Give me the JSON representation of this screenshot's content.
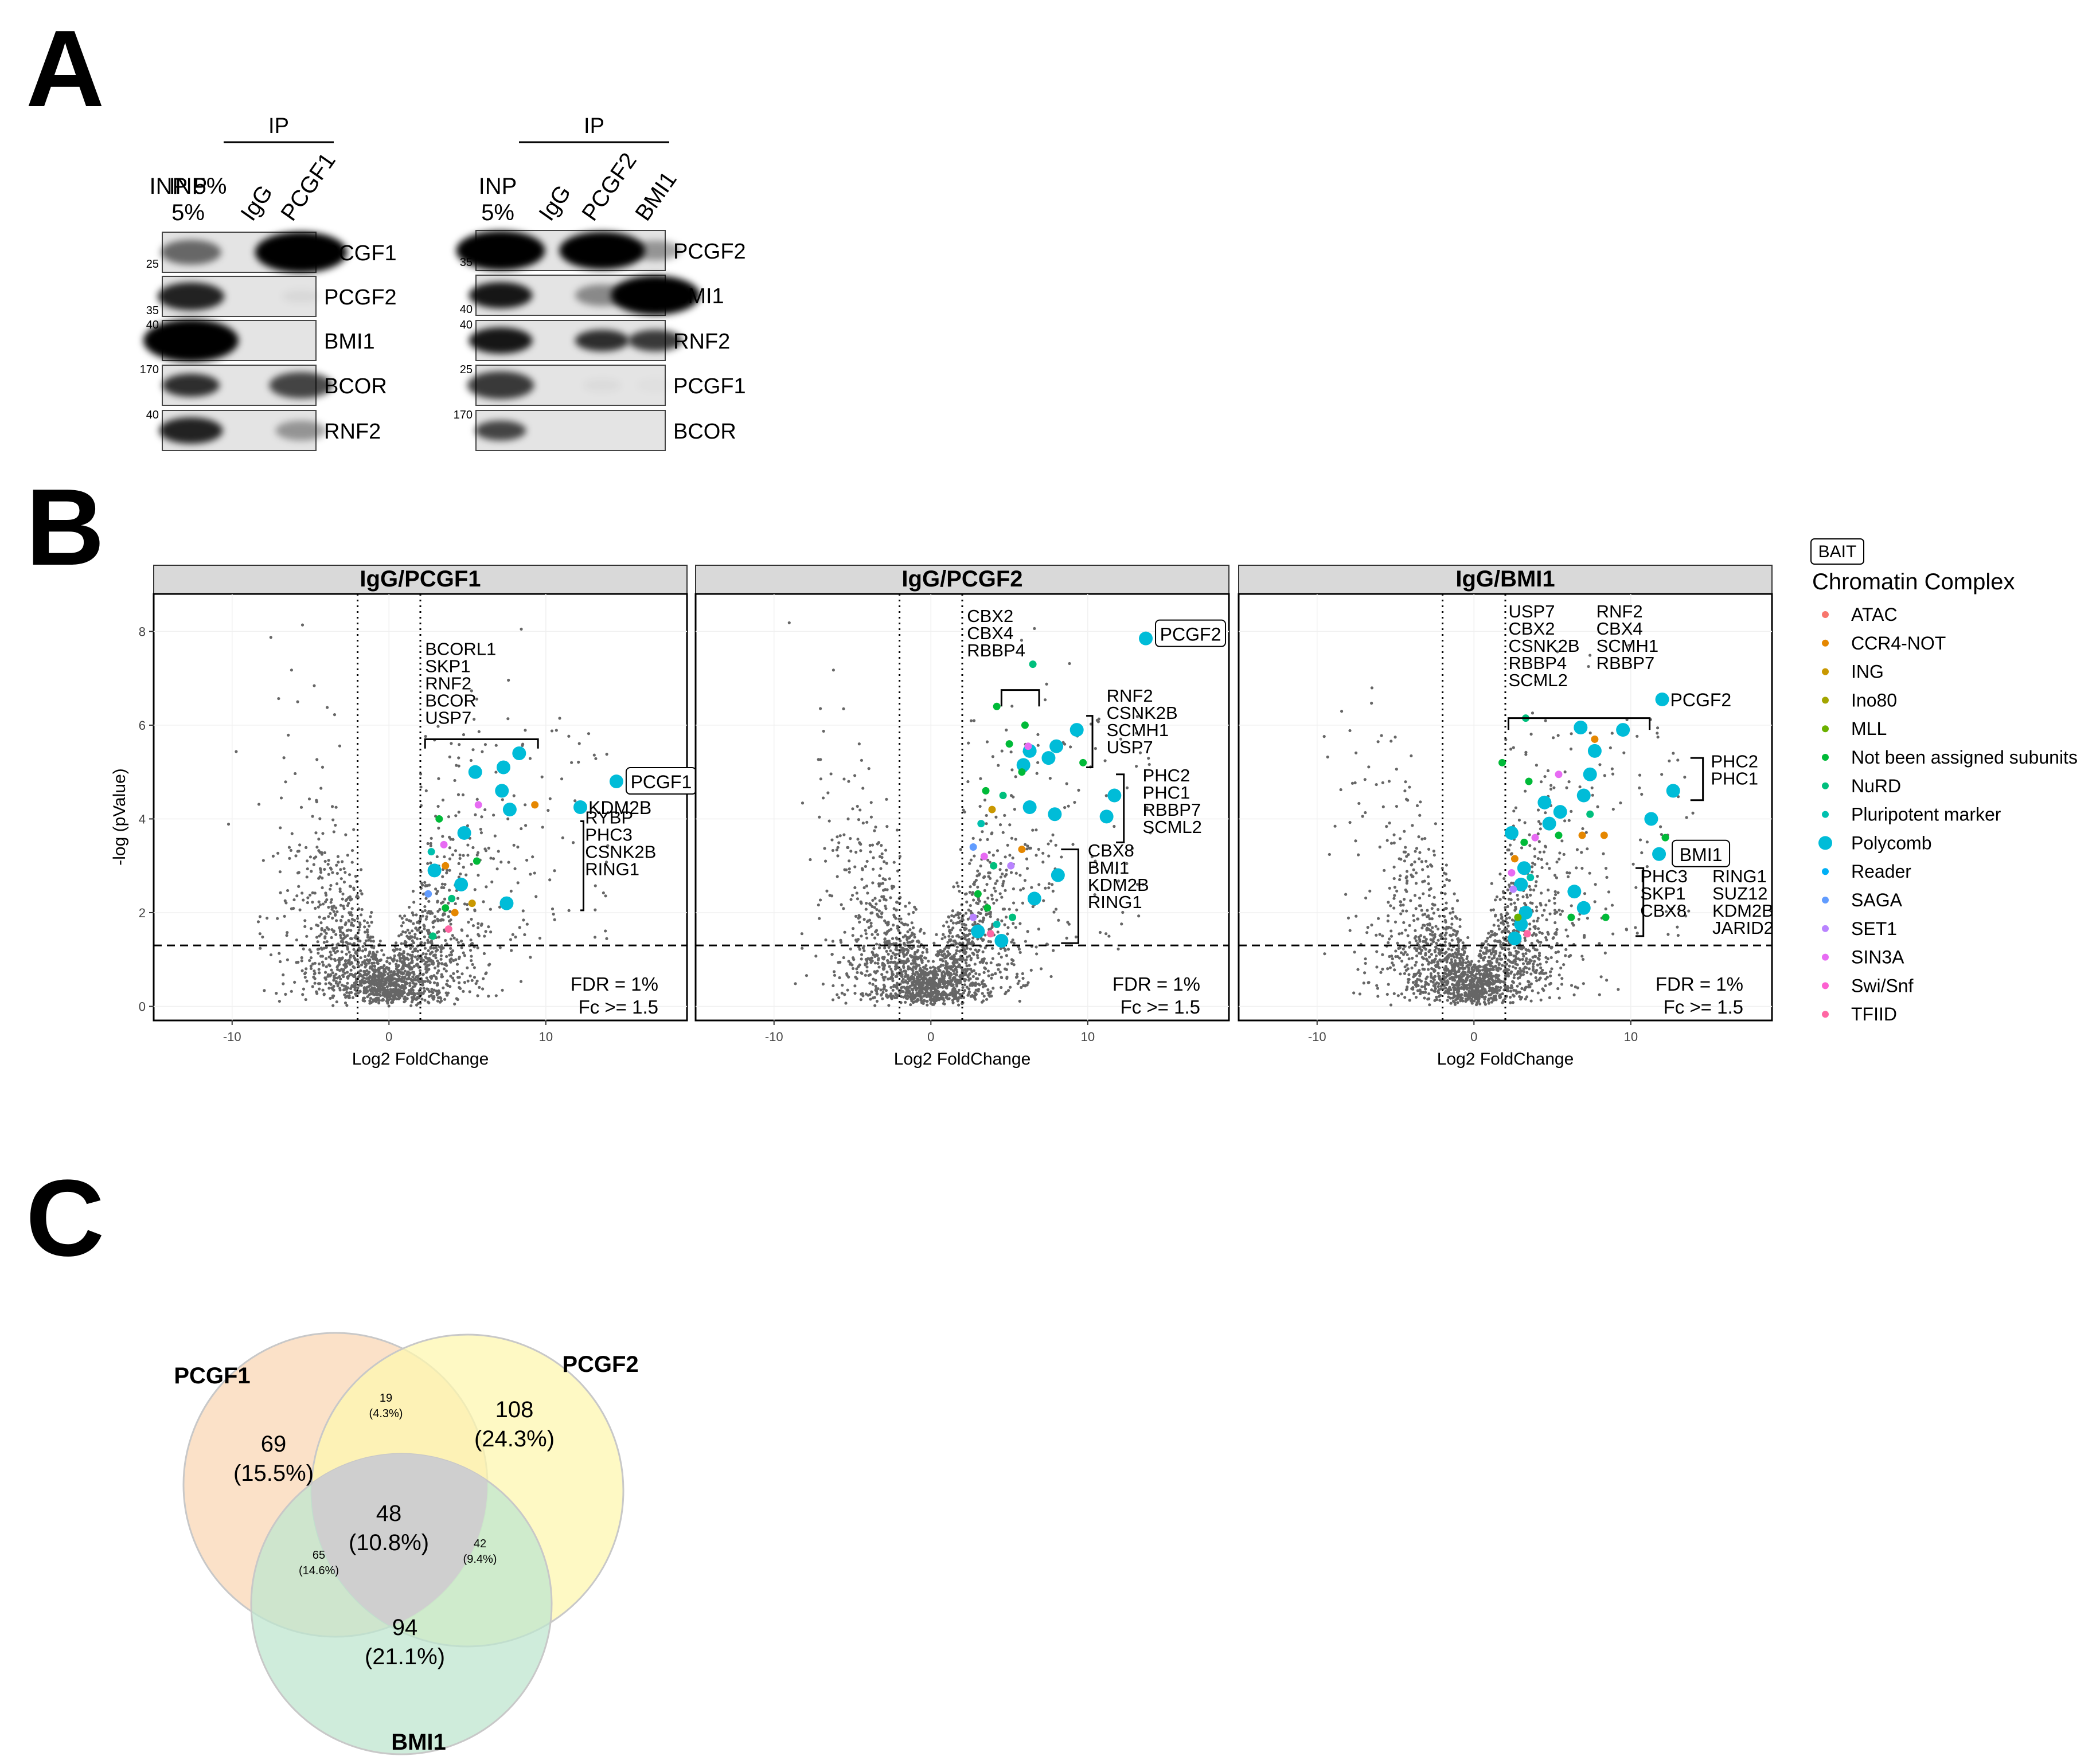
{
  "panel_labels": {
    "a": "A",
    "b": "B",
    "c": "C"
  },
  "blots": {
    "ip_label": "IP",
    "left": {
      "lanes": [
        "INP\n5%",
        "IgG",
        "PCGF1"
      ],
      "rows": [
        {
          "protein": "PCGF1",
          "mw": "25"
        },
        {
          "protein": "PCGF2",
          "mw": "35"
        },
        {
          "protein": "BMI1",
          "mw": "40"
        },
        {
          "protein": "BCOR",
          "mw": "170"
        },
        {
          "protein": "RNF2",
          "mw": "40"
        }
      ]
    },
    "right": {
      "lanes": [
        "INP\n5%",
        "IgG",
        "PCGF2",
        "BMI1"
      ],
      "rows": [
        {
          "protein": "PCGF2",
          "mw": "35"
        },
        {
          "protein": "BMI1",
          "mw": "40"
        },
        {
          "protein": "RNF2",
          "mw": "40"
        },
        {
          "protein": "PCGF1",
          "mw": "25"
        },
        {
          "protein": "BCOR",
          "mw": "170"
        }
      ]
    }
  },
  "colors": {
    "ATAC": "#F8766D",
    "CCR4-NOT": "#E58700",
    "ING": "#C99800",
    "Ino80": "#A3A500",
    "MLL": "#6BB100",
    "Not been assigned subunits": "#00BA38",
    "NuRD": "#00BF7D",
    "Pluripotent marker": "#00C0AF",
    "Polycomb": "#00BCD8",
    "Reader": "#00B0F6",
    "SAGA": "#619CFF",
    "SET1": "#B983FF",
    "SIN3A": "#E76BF3",
    "Swi/Snf": "#FD61D1",
    "TFIID": "#FF67A4",
    "background_points": "#666666",
    "pcgf1_set": "#FAD7B5",
    "pcgf2_set": "#FDF7B0",
    "bmi1_set": "#BFE6CF",
    "center_overlap": "#CFCFCF"
  },
  "chart_data": [
    {
      "type": "scatter",
      "title": "IgG/PCGF1",
      "xlabel": "Log2 FoldChange",
      "ylabel": "-log (pValue)",
      "xlim": [
        -15,
        19
      ],
      "ylim": [
        -0.3,
        8.8
      ],
      "x_ticks": [
        -10,
        0,
        10
      ],
      "y_ticks": [
        0,
        2,
        4,
        6,
        8
      ],
      "fold_change_lines": [
        -2,
        2
      ],
      "pvalue_line": 1.3,
      "stats_text": [
        "FDR = 1%",
        "Fc >= 1.5"
      ],
      "bait": "PCGF1",
      "points": [
        {
          "x": 14.5,
          "y": 4.8,
          "complex": "Polycomb",
          "label": "PCGF1"
        },
        {
          "x": 12.2,
          "y": 4.25,
          "complex": "Polycomb",
          "label": "KDM2B"
        },
        {
          "x": 5.5,
          "y": 5.0,
          "complex": "Polycomb"
        },
        {
          "x": 7.3,
          "y": 5.1,
          "complex": "Polycomb"
        },
        {
          "x": 8.3,
          "y": 5.4,
          "complex": "Polycomb"
        },
        {
          "x": 7.2,
          "y": 4.6,
          "complex": "Polycomb"
        },
        {
          "x": 7.7,
          "y": 4.2,
          "complex": "Polycomb"
        },
        {
          "x": 4.8,
          "y": 3.7,
          "complex": "Polycomb"
        },
        {
          "x": 4.6,
          "y": 2.6,
          "complex": "Polycomb"
        },
        {
          "x": 7.5,
          "y": 2.2,
          "complex": "Polycomb"
        },
        {
          "x": 2.9,
          "y": 2.9,
          "complex": "Polycomb"
        },
        {
          "x": 9.3,
          "y": 4.3,
          "complex": "CCR4-NOT"
        },
        {
          "x": 5.7,
          "y": 4.3,
          "complex": "SIN3A"
        },
        {
          "x": 3.6,
          "y": 3.0,
          "complex": "CCR4-NOT"
        },
        {
          "x": 5.3,
          "y": 2.2,
          "complex": "ING"
        },
        {
          "x": 3.2,
          "y": 4.0,
          "complex": "Not been assigned subunits"
        },
        {
          "x": 5.6,
          "y": 3.1,
          "complex": "Not been assigned subunits"
        },
        {
          "x": 2.7,
          "y": 3.3,
          "complex": "Pluripotent marker"
        },
        {
          "x": 3.5,
          "y": 3.45,
          "complex": "SIN3A"
        },
        {
          "x": 2.5,
          "y": 2.4,
          "complex": "SAGA"
        },
        {
          "x": 3.6,
          "y": 2.1,
          "complex": "Not been assigned subunits"
        },
        {
          "x": 4.2,
          "y": 2.0,
          "complex": "CCR4-NOT"
        },
        {
          "x": 4.0,
          "y": 2.3,
          "complex": "NuRD"
        },
        {
          "x": 3.8,
          "y": 1.65,
          "complex": "TFIID"
        },
        {
          "x": 2.8,
          "y": 1.5,
          "complex": "NuRD"
        }
      ],
      "annotations": [
        {
          "lines": [
            "BCORL1",
            "SKP1",
            "RNF2",
            "BCOR",
            "USP7"
          ],
          "bracket": "horizontal"
        },
        {
          "lines": [
            "RYBP",
            "PHC3",
            "CSNK2B",
            "RING1"
          ],
          "bracket": "vertical"
        }
      ]
    },
    {
      "type": "scatter",
      "title": "IgG/PCGF2",
      "xlabel": "Log2 FoldChange",
      "ylabel": "",
      "xlim": [
        -15,
        19
      ],
      "ylim": [
        -0.3,
        8.8
      ],
      "x_ticks": [
        -10,
        0,
        10
      ],
      "y_ticks": [
        0,
        2,
        4,
        6,
        8
      ],
      "fold_change_lines": [
        -2,
        2
      ],
      "pvalue_line": 1.3,
      "stats_text": [
        "FDR = 1%",
        "Fc >= 1.5"
      ],
      "bait": "PCGF2",
      "points": [
        {
          "x": 13.7,
          "y": 7.85,
          "complex": "Polycomb",
          "label": "PCGF2"
        },
        {
          "x": 9.3,
          "y": 5.9,
          "complex": "Polycomb"
        },
        {
          "x": 8.0,
          "y": 5.55,
          "complex": "Polycomb"
        },
        {
          "x": 7.5,
          "y": 5.3,
          "complex": "Polycomb"
        },
        {
          "x": 6.3,
          "y": 5.45,
          "complex": "Polycomb"
        },
        {
          "x": 5.9,
          "y": 5.15,
          "complex": "Polycomb"
        },
        {
          "x": 11.7,
          "y": 4.5,
          "complex": "Polycomb"
        },
        {
          "x": 11.2,
          "y": 4.05,
          "complex": "Polycomb"
        },
        {
          "x": 7.9,
          "y": 4.1,
          "complex": "Polycomb"
        },
        {
          "x": 6.3,
          "y": 4.25,
          "complex": "Polycomb"
        },
        {
          "x": 8.1,
          "y": 2.8,
          "complex": "Polycomb"
        },
        {
          "x": 6.6,
          "y": 2.3,
          "complex": "Polycomb"
        },
        {
          "x": 3.0,
          "y": 1.6,
          "complex": "Polycomb"
        },
        {
          "x": 4.5,
          "y": 1.4,
          "complex": "Polycomb"
        },
        {
          "x": 6.5,
          "y": 7.3,
          "complex": "NuRD"
        },
        {
          "x": 4.2,
          "y": 6.4,
          "complex": "Not been assigned subunits"
        },
        {
          "x": 6.0,
          "y": 6.0,
          "complex": "Not been assigned subunits"
        },
        {
          "x": 5.0,
          "y": 5.6,
          "complex": "Not been assigned subunits"
        },
        {
          "x": 6.2,
          "y": 5.55,
          "complex": "SIN3A"
        },
        {
          "x": 5.8,
          "y": 5.0,
          "complex": "Not been assigned subunits"
        },
        {
          "x": 9.7,
          "y": 5.2,
          "complex": "Not been assigned subunits"
        },
        {
          "x": 3.5,
          "y": 4.6,
          "complex": "Not been assigned subunits"
        },
        {
          "x": 3.9,
          "y": 4.2,
          "complex": "ING"
        },
        {
          "x": 4.6,
          "y": 4.5,
          "complex": "NuRD"
        },
        {
          "x": 3.2,
          "y": 3.9,
          "complex": "Pluripotent marker"
        },
        {
          "x": 2.7,
          "y": 3.4,
          "complex": "SAGA"
        },
        {
          "x": 3.4,
          "y": 3.2,
          "complex": "SIN3A"
        },
        {
          "x": 4.0,
          "y": 3.0,
          "complex": "NuRD"
        },
        {
          "x": 5.8,
          "y": 3.35,
          "complex": "CCR4-NOT"
        },
        {
          "x": 5.1,
          "y": 3.0,
          "complex": "SET1"
        },
        {
          "x": 3.0,
          "y": 2.4,
          "complex": "Not been assigned subunits"
        },
        {
          "x": 3.6,
          "y": 2.1,
          "complex": "Not been assigned subunits"
        },
        {
          "x": 2.7,
          "y": 1.9,
          "complex": "SET1"
        },
        {
          "x": 4.2,
          "y": 1.75,
          "complex": "Pluripotent marker"
        },
        {
          "x": 3.8,
          "y": 1.55,
          "complex": "TFIID"
        },
        {
          "x": 5.2,
          "y": 1.9,
          "complex": "NuRD"
        }
      ],
      "annotations": [
        {
          "lines": [
            "CBX2",
            "CBX4",
            "RBBP4"
          ],
          "bracket": "horizontal"
        },
        {
          "lines": [
            "RNF2",
            "CSNK2B",
            "SCMH1",
            "USP7"
          ],
          "bracket": "vertical"
        },
        {
          "lines": [
            "PHC2",
            "PHC1",
            "RBBP7",
            "SCML2"
          ],
          "bracket": "vertical"
        },
        {
          "lines": [
            "CBX8",
            "BMI1",
            "KDM2B",
            "RING1"
          ],
          "bracket": "vertical"
        }
      ]
    },
    {
      "type": "scatter",
      "title": "IgG/BMI1",
      "xlabel": "Log2 FoldChange",
      "ylabel": "",
      "xlim": [
        -15,
        19
      ],
      "ylim": [
        -0.3,
        8.8
      ],
      "x_ticks": [
        -10,
        0,
        10
      ],
      "y_ticks": [
        0,
        2,
        4,
        6,
        8
      ],
      "fold_change_lines": [
        -2,
        2
      ],
      "pvalue_line": 1.3,
      "stats_text": [
        "FDR = 1%",
        "Fc >= 1.5"
      ],
      "bait": "BMI1",
      "points": [
        {
          "x": 11.8,
          "y": 3.25,
          "complex": "Polycomb",
          "label": "BMI1"
        },
        {
          "x": 12.0,
          "y": 6.55,
          "complex": "Polycomb",
          "label": "PCGF2"
        },
        {
          "x": 12.7,
          "y": 4.6,
          "complex": "Polycomb"
        },
        {
          "x": 11.3,
          "y": 4.0,
          "complex": "Polycomb"
        },
        {
          "x": 6.8,
          "y": 5.95,
          "complex": "Polycomb"
        },
        {
          "x": 9.5,
          "y": 5.9,
          "complex": "Polycomb"
        },
        {
          "x": 7.7,
          "y": 5.45,
          "complex": "Polycomb"
        },
        {
          "x": 7.4,
          "y": 4.95,
          "complex": "Polycomb"
        },
        {
          "x": 4.5,
          "y": 4.35,
          "complex": "Polycomb"
        },
        {
          "x": 5.5,
          "y": 4.15,
          "complex": "Polycomb"
        },
        {
          "x": 7.0,
          "y": 4.5,
          "complex": "Polycomb"
        },
        {
          "x": 4.8,
          "y": 3.9,
          "complex": "Polycomb"
        },
        {
          "x": 2.4,
          "y": 3.7,
          "complex": "Polycomb"
        },
        {
          "x": 3.2,
          "y": 2.95,
          "complex": "Polycomb"
        },
        {
          "x": 3.0,
          "y": 2.6,
          "complex": "Polycomb"
        },
        {
          "x": 6.4,
          "y": 2.45,
          "complex": "Polycomb"
        },
        {
          "x": 7.0,
          "y": 2.1,
          "complex": "Polycomb"
        },
        {
          "x": 3.3,
          "y": 2.0,
          "complex": "Polycomb"
        },
        {
          "x": 2.6,
          "y": 1.45,
          "complex": "Polycomb"
        },
        {
          "x": 3.0,
          "y": 1.75,
          "complex": "Polycomb"
        },
        {
          "x": 12.2,
          "y": 3.6,
          "complex": "Not been assigned subunits"
        },
        {
          "x": 7.7,
          "y": 5.7,
          "complex": "CCR4-NOT"
        },
        {
          "x": 5.4,
          "y": 4.95,
          "complex": "SIN3A"
        },
        {
          "x": 3.5,
          "y": 4.8,
          "complex": "Not been assigned subunits"
        },
        {
          "x": 1.8,
          "y": 5.2,
          "complex": "Not been assigned subunits"
        },
        {
          "x": 3.3,
          "y": 6.15,
          "complex": "NuRD"
        },
        {
          "x": 7.4,
          "y": 4.1,
          "complex": "NuRD"
        },
        {
          "x": 6.9,
          "y": 3.65,
          "complex": "CCR4-NOT"
        },
        {
          "x": 8.3,
          "y": 3.65,
          "complex": "CCR4-NOT"
        },
        {
          "x": 5.4,
          "y": 3.65,
          "complex": "Not been assigned subunits"
        },
        {
          "x": 3.2,
          "y": 3.5,
          "complex": "Not been assigned subunits"
        },
        {
          "x": 3.9,
          "y": 3.6,
          "complex": "SIN3A"
        },
        {
          "x": 2.6,
          "y": 3.15,
          "complex": "CCR4-NOT"
        },
        {
          "x": 2.4,
          "y": 2.85,
          "complex": "SIN3A"
        },
        {
          "x": 3.6,
          "y": 2.75,
          "complex": "Pluripotent marker"
        },
        {
          "x": 2.5,
          "y": 2.5,
          "complex": "SET1"
        },
        {
          "x": 6.2,
          "y": 1.9,
          "complex": "Not been assigned subunits"
        },
        {
          "x": 8.4,
          "y": 1.9,
          "complex": "Not been assigned subunits"
        },
        {
          "x": 2.8,
          "y": 1.9,
          "complex": "MLL"
        },
        {
          "x": 3.4,
          "y": 1.55,
          "complex": "TFIID"
        }
      ],
      "annotations": [
        {
          "lines": [
            "USP7",
            "CBX2",
            "CSNK2B",
            "RBBP4",
            "SCML2"
          ],
          "bracket": "horizontal"
        },
        {
          "lines": [
            "RNF2",
            "CBX4",
            "SCMH1",
            "RBBP7"
          ],
          "bracket": "horizontal"
        },
        {
          "lines": [
            "PHC2",
            "PHC1"
          ],
          "bracket": "vertical"
        },
        {
          "lines": [
            "PHC3",
            "SKP1",
            "CBX8"
          ],
          "bracket": "vertical"
        },
        {
          "lines": [
            "RING1",
            "SUZ12",
            "KDM2B",
            "JARID2"
          ],
          "bracket": "none"
        }
      ]
    }
  ],
  "legend": {
    "bait_label": "BAIT",
    "title": "Chromatin Complex",
    "items": [
      "ATAC",
      "CCR4-NOT",
      "ING",
      "Ino80",
      "MLL",
      "Not been assigned subunits",
      "NuRD",
      "Pluripotent marker",
      "Polycomb",
      "Reader",
      "SAGA",
      "SET1",
      "SIN3A",
      "Swi/Snf",
      "TFIID"
    ]
  },
  "venn": {
    "sets": [
      "PCGF1",
      "PCGF2",
      "BMI1"
    ],
    "regions": {
      "pcgf1_only": {
        "count": "69",
        "pct": "(15.5%)"
      },
      "pcgf2_only": {
        "count": "108",
        "pct": "(24.3%)"
      },
      "bmi1_only": {
        "count": "94",
        "pct": "(21.1%)"
      },
      "pcgf1_pcgf2": {
        "count": "19",
        "pct": "(4.3%)"
      },
      "pcgf1_bmi1": {
        "count": "65",
        "pct": "(14.6%)"
      },
      "pcgf2_bmi1": {
        "count": "42",
        "pct": "(9.4%)"
      },
      "all_three": {
        "count": "48",
        "pct": "(10.8%)"
      }
    }
  }
}
